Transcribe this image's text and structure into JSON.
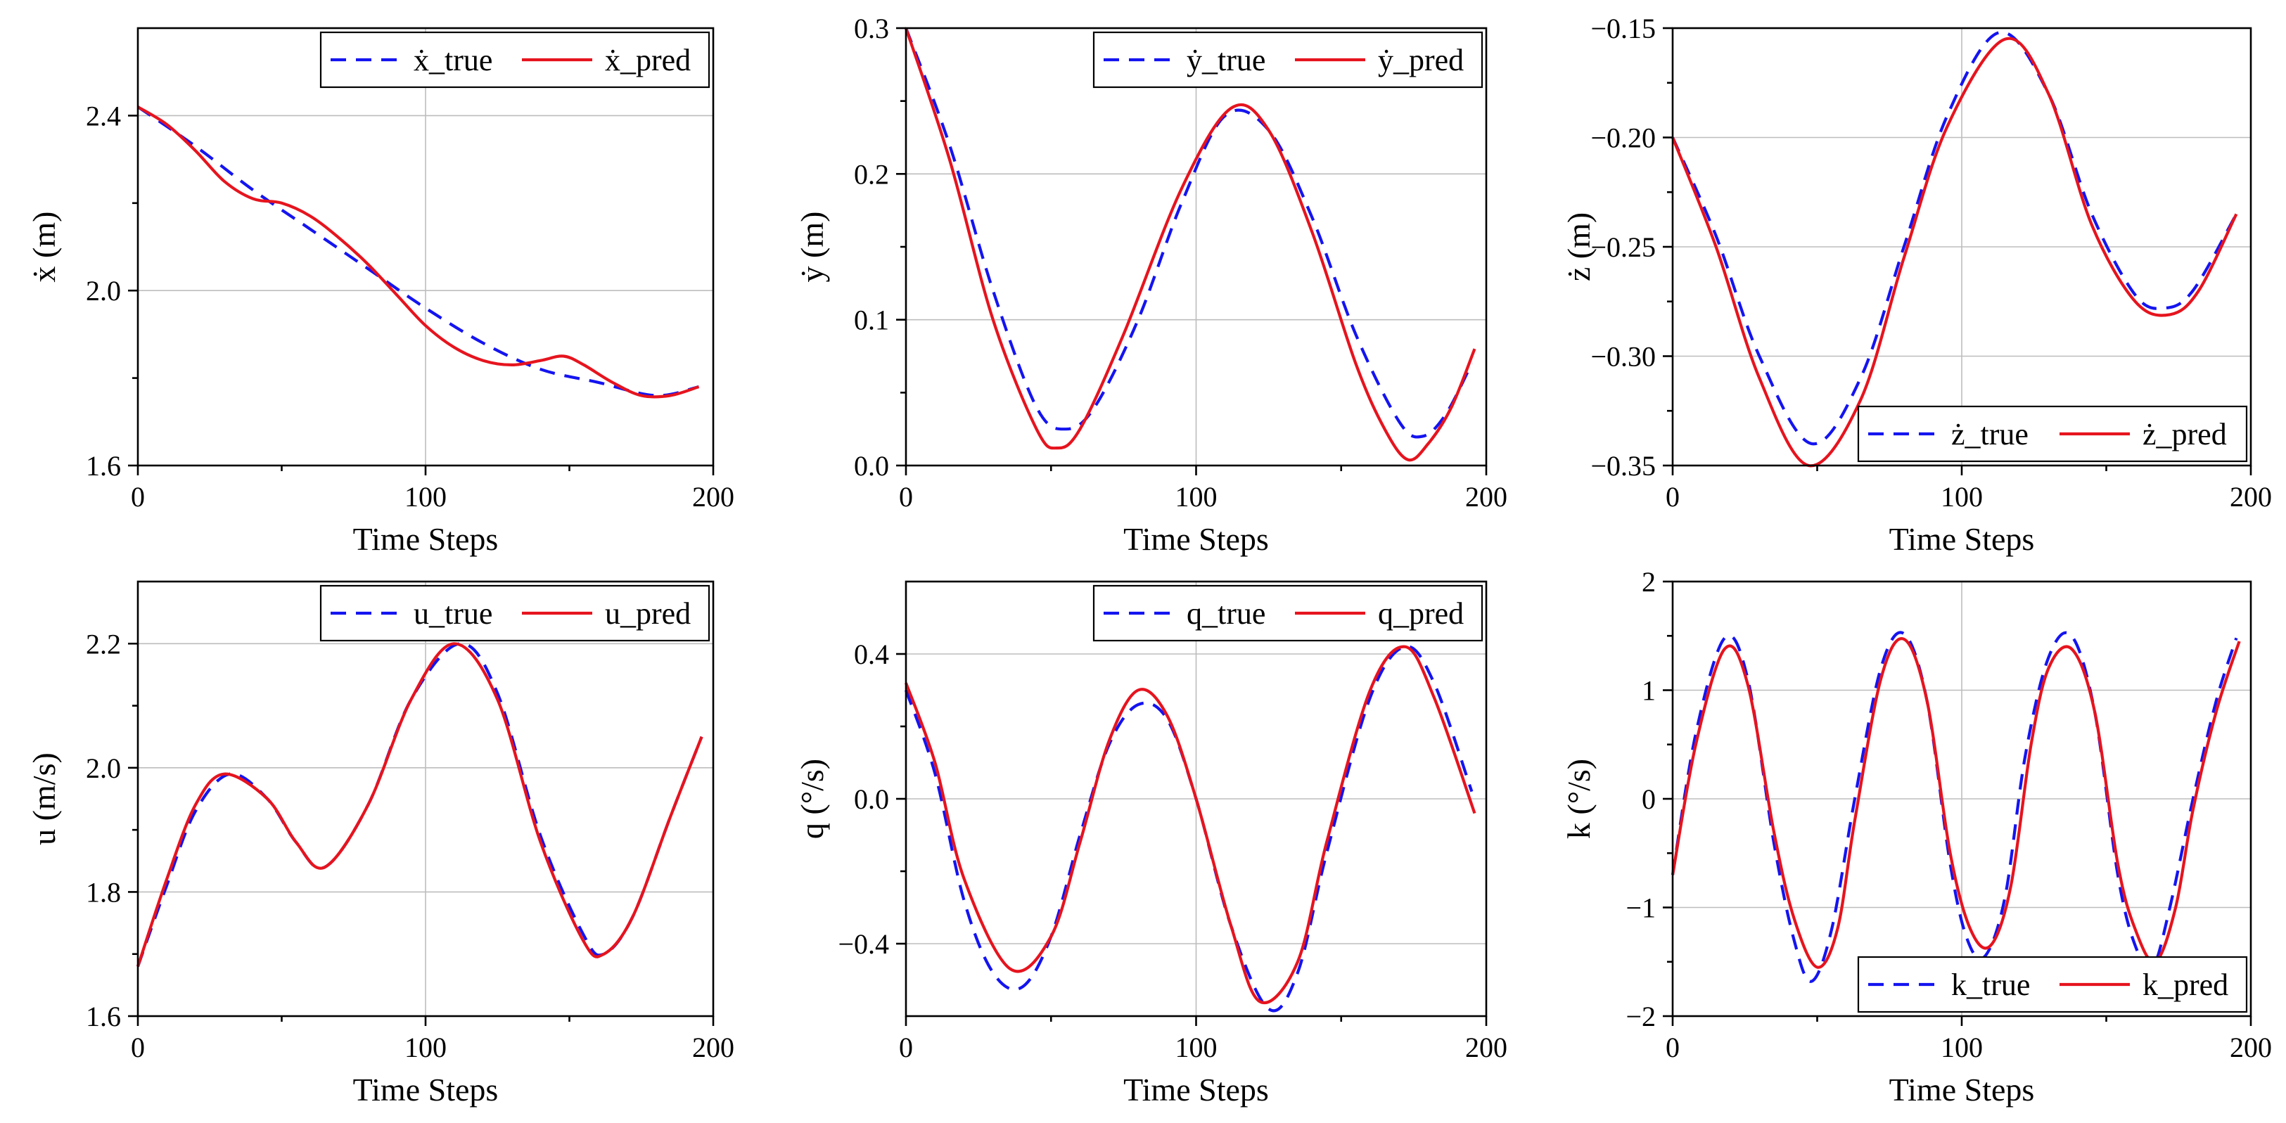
{
  "colors": {
    "true_series": "#1414f0",
    "pred_series": "#e6141e",
    "grid": "#bdbdbd"
  },
  "chart_data": [
    {
      "type": "line",
      "id": "xdot",
      "ylabel": "ẋ (m)",
      "xlabel": "Time Steps",
      "xlim": [
        0,
        200
      ],
      "ylim": [
        1.6,
        2.6
      ],
      "xticks": [
        0,
        100,
        200
      ],
      "xtick_labels": [
        "0",
        "100",
        "200"
      ],
      "yticks": [
        1.6,
        2.0,
        2.4
      ],
      "ytick_labels": [
        "1.6",
        "2.0",
        "2.4"
      ],
      "legend_position": "top-right",
      "series": [
        {
          "name": "ẋ_true",
          "style": "dashed",
          "x": [
            0,
            20,
            40,
            60,
            80,
            100,
            120,
            140,
            160,
            180,
            195
          ],
          "y": [
            2.42,
            2.33,
            2.23,
            2.14,
            2.05,
            1.96,
            1.88,
            1.82,
            1.79,
            1.76,
            1.78
          ]
        },
        {
          "name": "ẋ_pred",
          "style": "solid",
          "x": [
            0,
            10,
            20,
            30,
            40,
            50,
            60,
            70,
            80,
            90,
            100,
            110,
            120,
            130,
            140,
            148,
            155,
            165,
            175,
            185,
            195
          ],
          "y": [
            2.42,
            2.38,
            2.32,
            2.25,
            2.21,
            2.2,
            2.17,
            2.12,
            2.06,
            1.99,
            1.92,
            1.87,
            1.84,
            1.83,
            1.84,
            1.85,
            1.83,
            1.79,
            1.76,
            1.76,
            1.78
          ]
        }
      ]
    },
    {
      "type": "line",
      "id": "ydot",
      "ylabel": "ẏ (m)",
      "xlabel": "Time Steps",
      "xlim": [
        0,
        200
      ],
      "ylim": [
        0.0,
        0.3
      ],
      "xticks": [
        0,
        100,
        200
      ],
      "xtick_labels": [
        "0",
        "100",
        "200"
      ],
      "yticks": [
        0.0,
        0.1,
        0.2,
        0.3
      ],
      "ytick_labels": [
        "0.0",
        "0.1",
        "0.2",
        "0.3"
      ],
      "legend_position": "top-right",
      "series": [
        {
          "name": "ẏ_true",
          "style": "dashed",
          "x": [
            0,
            15,
            30,
            45,
            55,
            65,
            80,
            95,
            110,
            125,
            140,
            155,
            170,
            178,
            186,
            195
          ],
          "y": [
            0.3,
            0.22,
            0.12,
            0.04,
            0.025,
            0.04,
            0.1,
            0.18,
            0.24,
            0.23,
            0.17,
            0.09,
            0.03,
            0.02,
            0.035,
            0.07
          ]
        },
        {
          "name": "ẏ_pred",
          "style": "solid",
          "x": [
            0,
            15,
            30,
            45,
            52,
            60,
            75,
            95,
            112,
            125,
            140,
            155,
            165,
            173,
            180,
            188,
            196
          ],
          "y": [
            0.3,
            0.21,
            0.1,
            0.025,
            0.012,
            0.025,
            0.09,
            0.19,
            0.245,
            0.23,
            0.16,
            0.07,
            0.025,
            0.004,
            0.015,
            0.04,
            0.08
          ]
        }
      ]
    },
    {
      "type": "line",
      "id": "zdot",
      "ylabel": "ż (m)",
      "xlabel": "Time Steps",
      "xlim": [
        0,
        200
      ],
      "ylim": [
        -0.35,
        -0.15
      ],
      "xticks": [
        0,
        100,
        200
      ],
      "xtick_labels": [
        "0",
        "100",
        "200"
      ],
      "yticks": [
        -0.35,
        -0.3,
        -0.25,
        -0.2,
        -0.15
      ],
      "ytick_labels": [
        "−0.35",
        "−0.30",
        "−0.25",
        "−0.20",
        "−0.15"
      ],
      "legend_position": "bottom-right",
      "series": [
        {
          "name": "ż_true",
          "style": "dashed",
          "x": [
            0,
            15,
            30,
            48,
            65,
            80,
            95,
            113,
            130,
            145,
            160,
            170,
            180,
            195
          ],
          "y": [
            -0.2,
            -0.245,
            -0.3,
            -0.34,
            -0.31,
            -0.25,
            -0.19,
            -0.152,
            -0.18,
            -0.235,
            -0.272,
            -0.278,
            -0.27,
            -0.235
          ]
        },
        {
          "name": "ż_pred",
          "style": "solid",
          "x": [
            0,
            15,
            30,
            47,
            65,
            80,
            95,
            115,
            130,
            145,
            160,
            172,
            182,
            195
          ],
          "y": [
            -0.2,
            -0.25,
            -0.31,
            -0.35,
            -0.32,
            -0.255,
            -0.195,
            -0.155,
            -0.18,
            -0.24,
            -0.275,
            -0.281,
            -0.27,
            -0.235
          ]
        }
      ]
    },
    {
      "type": "line",
      "id": "u",
      "ylabel": "u (m/s)",
      "xlabel": "Time Steps",
      "xlim": [
        0,
        200
      ],
      "ylim": [
        1.6,
        2.3
      ],
      "xticks": [
        0,
        100,
        200
      ],
      "xtick_labels": [
        "0",
        "100",
        "200"
      ],
      "yticks": [
        1.6,
        1.8,
        2.0,
        2.2
      ],
      "ytick_labels": [
        "1.6",
        "1.8",
        "2.0",
        "2.2"
      ],
      "legend_position": "top-right",
      "series": [
        {
          "name": "u_true",
          "style": "dashed",
          "x": [
            0,
            10,
            20,
            32,
            45,
            55,
            65,
            80,
            95,
            112,
            125,
            140,
            155,
            162,
            172,
            185,
            196
          ],
          "y": [
            1.68,
            1.81,
            1.93,
            1.99,
            1.95,
            1.88,
            1.84,
            1.94,
            2.11,
            2.2,
            2.12,
            1.89,
            1.73,
            1.7,
            1.76,
            1.92,
            2.05
          ]
        },
        {
          "name": "u_pred",
          "style": "solid",
          "x": [
            0,
            10,
            20,
            30,
            45,
            55,
            65,
            80,
            95,
            110,
            125,
            140,
            155,
            162,
            172,
            185,
            196
          ],
          "y": [
            1.68,
            1.82,
            1.94,
            1.99,
            1.95,
            1.88,
            1.84,
            1.94,
            2.11,
            2.2,
            2.11,
            1.88,
            1.72,
            1.7,
            1.76,
            1.92,
            2.05
          ]
        }
      ]
    },
    {
      "type": "line",
      "id": "q",
      "ylabel": "q (°/s)",
      "xlabel": "Time Steps",
      "xlim": [
        0,
        200
      ],
      "ylim": [
        -0.6,
        0.6
      ],
      "xticks": [
        0,
        100,
        200
      ],
      "xtick_labels": [
        "0",
        "100",
        "200"
      ],
      "yticks": [
        -0.4,
        0.0,
        0.4
      ],
      "ytick_labels": [
        "−0.4",
        "0.0",
        "0.4"
      ],
      "legend_position": "top-right",
      "series": [
        {
          "name": "q_true",
          "style": "dashed",
          "x": [
            0,
            10,
            20,
            30,
            40,
            50,
            60,
            70,
            80,
            90,
            100,
            112,
            125,
            135,
            145,
            160,
            172,
            182,
            195
          ],
          "y": [
            0.3,
            0.07,
            -0.28,
            -0.48,
            -0.52,
            -0.38,
            -0.1,
            0.15,
            0.26,
            0.22,
            0.0,
            -0.35,
            -0.58,
            -0.48,
            -0.15,
            0.28,
            0.42,
            0.32,
            0.02
          ]
        },
        {
          "name": "q_pred",
          "style": "solid",
          "x": [
            0,
            10,
            20,
            36,
            50,
            60,
            70,
            80,
            90,
            100,
            112,
            122,
            135,
            145,
            160,
            172,
            182,
            196
          ],
          "y": [
            0.32,
            0.1,
            -0.22,
            -0.47,
            -0.38,
            -0.12,
            0.16,
            0.3,
            0.23,
            0.0,
            -0.35,
            -0.56,
            -0.45,
            -0.12,
            0.3,
            0.42,
            0.28,
            -0.04
          ]
        }
      ]
    },
    {
      "type": "line",
      "id": "k",
      "ylabel": "k (°/s)",
      "xlabel": "Time Steps",
      "xlim": [
        0,
        200
      ],
      "ylim": [
        -2,
        2
      ],
      "xticks": [
        0,
        100,
        200
      ],
      "xtick_labels": [
        "0",
        "100",
        "200"
      ],
      "yticks": [
        -2,
        -1,
        0,
        1,
        2
      ],
      "ytick_labels": [
        "−2",
        "−1",
        "0",
        "1",
        "2"
      ],
      "legend_position": "bottom-right",
      "series": [
        {
          "name": "k_true",
          "style": "dashed",
          "x": [
            0,
            8,
            18,
            26,
            35,
            42,
            48,
            55,
            63,
            72,
            80,
            88,
            96,
            102,
            108,
            115,
            122,
            130,
            138,
            146,
            154,
            160,
            166,
            172,
            180,
            188,
            195
          ],
          "y": [
            -0.7,
            0.6,
            1.48,
            1.1,
            -0.4,
            -1.3,
            -1.68,
            -1.2,
            0.0,
            1.2,
            1.52,
            0.9,
            -0.6,
            -1.3,
            -1.45,
            -0.9,
            0.4,
            1.3,
            1.5,
            0.8,
            -0.7,
            -1.35,
            -1.55,
            -1.0,
            0.0,
            0.9,
            1.48
          ]
        },
        {
          "name": "k_pred",
          "style": "solid",
          "x": [
            0,
            8,
            18,
            26,
            35,
            42,
            50,
            57,
            63,
            72,
            80,
            88,
            96,
            103,
            110,
            117,
            124,
            130,
            138,
            146,
            154,
            160,
            167,
            174,
            180,
            188,
            196
          ],
          "y": [
            -0.7,
            0.5,
            1.38,
            1.05,
            -0.3,
            -1.1,
            -1.55,
            -1.2,
            -0.2,
            1.1,
            1.47,
            0.9,
            -0.5,
            -1.2,
            -1.35,
            -0.8,
            0.5,
            1.2,
            1.38,
            0.8,
            -0.6,
            -1.2,
            -1.5,
            -1.0,
            -0.1,
            0.8,
            1.45
          ]
        }
      ]
    }
  ]
}
